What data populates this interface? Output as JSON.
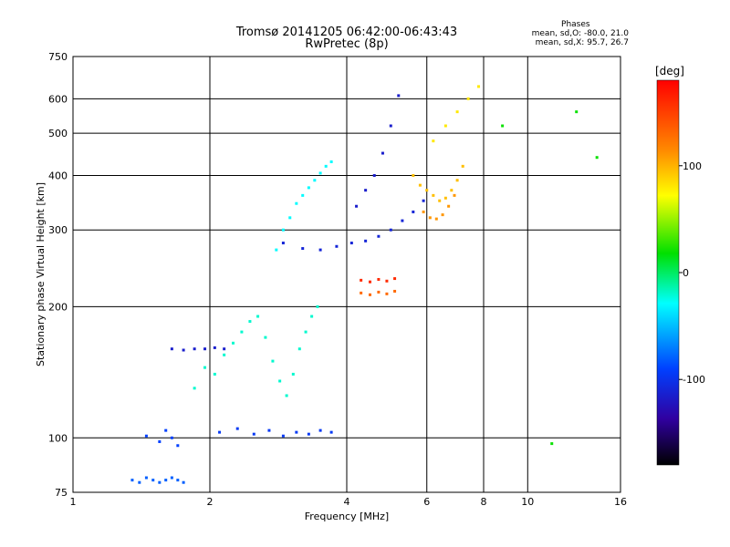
{
  "header": {
    "title_line1": "Tromsø 20141205 06:42:00-06:43:43",
    "title_line2": "RwPretec (8p)",
    "phases_label": "Phases",
    "phases_line1": "mean, sd,O: -80.0, 21.0",
    "phases_line2": "mean, sd,X:  95.7, 26.7"
  },
  "chart_data": {
    "type": "scatter",
    "xlabel": "Frequency [MHz]",
    "ylabel": "Stationary phase Virtual Height [km]",
    "x_scale": "log",
    "y_scale": "log",
    "xlim": [
      1,
      16
    ],
    "ylim": [
      75,
      750
    ],
    "x_ticks": [
      1,
      2,
      4,
      6,
      8,
      10,
      16
    ],
    "y_ticks": [
      75,
      100,
      200,
      300,
      400,
      500,
      600,
      750
    ],
    "x_gridlines": [
      2,
      4,
      6,
      8,
      10
    ],
    "y_gridlines": [
      100,
      200,
      300,
      400,
      500,
      600
    ],
    "grid": true,
    "colorbar": {
      "label": "[deg]",
      "ticks": [
        100,
        0,
        -100
      ],
      "range": [
        -180,
        180
      ],
      "colormap": "rainbow"
    },
    "series": [
      {
        "x": [
          1.35,
          1.4,
          1.45,
          1.5,
          1.55,
          1.6,
          1.65,
          1.7,
          1.75
        ],
        "y": [
          80,
          79,
          81,
          80,
          79,
          80,
          81,
          80,
          79
        ],
        "color_deg": -80
      },
      {
        "x": [
          1.45,
          1.55,
          1.6,
          1.65,
          1.7
        ],
        "y": [
          101,
          98,
          104,
          100,
          96
        ],
        "color_deg": -90
      },
      {
        "x": [
          1.65,
          1.75,
          1.85,
          1.95,
          2.05,
          2.15
        ],
        "y": [
          160,
          159,
          160,
          160,
          161,
          160
        ],
        "color_deg": -115
      },
      {
        "x": [
          1.85,
          1.95,
          2.05,
          2.15,
          2.25,
          2.35,
          2.45,
          2.55,
          2.65,
          2.75,
          2.85,
          2.95,
          3.05,
          3.15,
          3.25,
          3.35,
          3.45
        ],
        "y": [
          130,
          145,
          140,
          155,
          165,
          175,
          185,
          190,
          170,
          150,
          135,
          125,
          140,
          160,
          175,
          190,
          200
        ],
        "color_deg": -20
      },
      {
        "x": [
          2.1,
          2.3,
          2.5,
          2.7,
          2.9,
          3.1,
          3.3,
          3.5,
          3.7
        ],
        "y": [
          103,
          105,
          102,
          104,
          101,
          103,
          102,
          104,
          103
        ],
        "color_deg": -95
      },
      {
        "x": [
          2.8,
          2.9,
          3.0,
          3.1,
          3.2,
          3.3,
          3.4,
          3.5,
          3.6,
          3.7
        ],
        "y": [
          270,
          300,
          320,
          345,
          360,
          375,
          390,
          405,
          420,
          430
        ],
        "color_deg": -30
      },
      {
        "x": [
          2.9,
          3.2,
          3.5,
          3.8,
          4.1,
          4.4,
          4.7,
          5.0,
          5.3,
          5.6,
          5.9
        ],
        "y": [
          280,
          272,
          270,
          275,
          280,
          283,
          290,
          300,
          315,
          330,
          350
        ],
        "color_deg": -110
      },
      {
        "x": [
          4.2,
          4.4,
          4.6,
          4.8,
          5.0,
          5.2
        ],
        "y": [
          340,
          370,
          400,
          450,
          520,
          610
        ],
        "color_deg": -115
      },
      {
        "x": [
          4.3,
          4.5,
          4.7,
          4.9,
          5.1
        ],
        "y": [
          230,
          228,
          231,
          229,
          232
        ],
        "color_deg": 160
      },
      {
        "x": [
          4.3,
          4.5,
          4.7,
          4.9,
          5.1
        ],
        "y": [
          215,
          213,
          216,
          214,
          217
        ],
        "color_deg": 130
      },
      {
        "x": [
          5.6,
          5.8,
          6.0,
          6.2,
          6.4,
          6.6,
          6.8,
          7.0,
          7.2
        ],
        "y": [
          400,
          380,
          370,
          360,
          350,
          355,
          370,
          390,
          420
        ],
        "color_deg": 95
      },
      {
        "x": [
          5.9,
          6.1,
          6.3,
          6.5,
          6.7,
          6.9
        ],
        "y": [
          330,
          320,
          318,
          325,
          340,
          360
        ],
        "color_deg": 110
      },
      {
        "x": [
          6.2,
          6.6,
          7.0,
          7.4,
          7.8
        ],
        "y": [
          480,
          520,
          560,
          600,
          640
        ],
        "color_deg": 80
      },
      {
        "x": [
          8.8,
          11.3,
          12.8,
          14.2
        ],
        "y": [
          520,
          97,
          560,
          440
        ],
        "color_deg": 20
      }
    ]
  }
}
